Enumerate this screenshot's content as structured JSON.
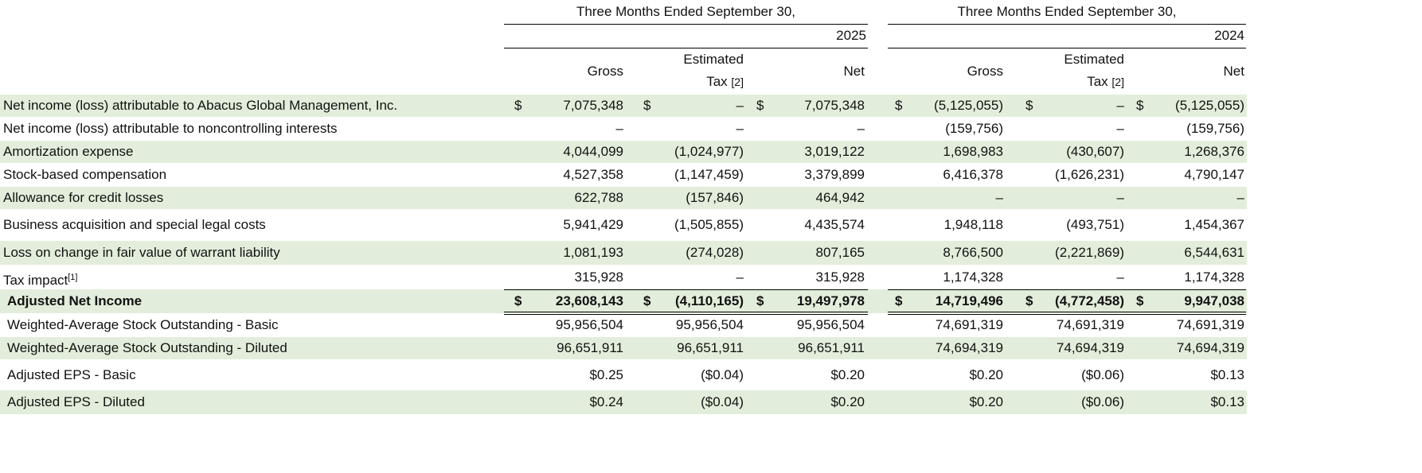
{
  "table": {
    "groups": [
      {
        "title": "Three Months Ended September 30,",
        "year": "2025"
      },
      {
        "title": "Three Months Ended September 30,",
        "year": "2024"
      }
    ],
    "column_headers": [
      {
        "lines": [
          "Gross"
        ]
      },
      {
        "lines": [
          "Estimated",
          "Tax"
        ],
        "note": "[2]"
      },
      {
        "lines": [
          "Net"
        ]
      }
    ],
    "currency_symbol": "$",
    "rows": [
      {
        "label": "Net income (loss) attributable to Abacus Global Management, Inc.",
        "shaded": true,
        "dollar": true,
        "cells": [
          "7,075,348",
          "–",
          "7,075,348",
          "(5,125,055)",
          "–",
          "(5,125,055)"
        ]
      },
      {
        "label": "Net income (loss) attributable to noncontrolling interests",
        "cells": [
          "–",
          "–",
          "–",
          "(159,756)",
          "–",
          "(159,756)"
        ]
      },
      {
        "label": "Amortization expense",
        "shaded": true,
        "cells": [
          "4,044,099",
          "(1,024,977)",
          "3,019,122",
          "1,698,983",
          "(430,607)",
          "1,268,376"
        ]
      },
      {
        "label": "Stock-based compensation",
        "cells": [
          "4,527,358",
          "(1,147,459)",
          "3,379,899",
          "6,416,378",
          "(1,626,231)",
          "4,790,147"
        ]
      },
      {
        "label": "Allowance for credit losses",
        "shaded": true,
        "cells": [
          "622,788",
          "(157,846)",
          "464,942",
          "–",
          "–",
          "–"
        ]
      },
      {
        "label": "Business acquisition and special legal costs",
        "cells": [
          "5,941,429",
          "(1,505,855)",
          "4,435,574",
          "1,948,118",
          "(493,751)",
          "1,454,367"
        ]
      },
      {
        "label": "Loss on change in fair value of warrant liability",
        "shaded": true,
        "cells": [
          "1,081,193",
          "(274,028)",
          "807,165",
          "8,766,500",
          "(2,221,869)",
          "6,544,631"
        ]
      },
      {
        "label": "Tax impact",
        "note": "[1]",
        "cells": [
          "315,928",
          "–",
          "315,928",
          "1,174,328",
          "–",
          "1,174,328"
        ]
      },
      {
        "label": "Adjusted Net Income",
        "shaded": true,
        "dollar": true,
        "bold": true,
        "cells": [
          "23,608,143",
          "(4,110,165)",
          "19,497,978",
          "14,719,496",
          "(4,772,458)",
          "9,947,038"
        ]
      },
      {
        "label": "Weighted-Average Stock Outstanding - Basic",
        "cells": [
          "95,956,504",
          "95,956,504",
          "95,956,504",
          "74,691,319",
          "74,691,319",
          "74,691,319"
        ]
      },
      {
        "label": "Weighted-Average Stock Outstanding - Diluted",
        "shaded": true,
        "cells": [
          "96,651,911",
          "96,651,911",
          "96,651,911",
          "74,694,319",
          "74,694,319",
          "74,694,319"
        ]
      },
      {
        "label": "Adjusted EPS - Basic",
        "cells": [
          "$0.25",
          "($0.04)",
          "$0.20",
          "$0.20",
          "($0.06)",
          "$0.13"
        ]
      },
      {
        "label": "Adjusted EPS - Diluted",
        "shaded": true,
        "cells": [
          "$0.24",
          "($0.04)",
          "$0.20",
          "$0.20",
          "($0.06)",
          "$0.13"
        ]
      }
    ]
  }
}
